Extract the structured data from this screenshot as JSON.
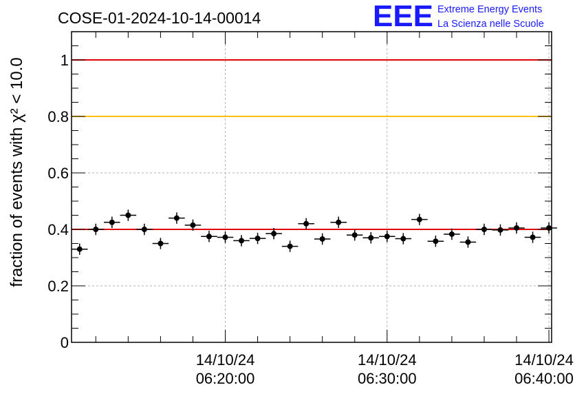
{
  "title": "COSE-01-2024-10-14-00014",
  "logo": {
    "letters": "EEE",
    "line1": "Extreme Energy Events",
    "line2": "La Scienza nelle Scuole",
    "color": "#1a1aff"
  },
  "chart_data": {
    "type": "scatter",
    "title": "COSE-01-2024-10-14-00014",
    "xlabel": "",
    "ylabel": "fraction of events with χ² < 10.0",
    "ylim": [
      0,
      1.1
    ],
    "xlim": [
      "14/10/24 06:10:30",
      "14/10/24 06:40:10"
    ],
    "grid": true,
    "y_ticks": [
      "0",
      "0.2",
      "0.4",
      "0.6",
      "0.8",
      "1"
    ],
    "x_ticks": [
      {
        "date": "14/10/24",
        "time": "06:20:00"
      },
      {
        "date": "14/10/24",
        "time": "06:30:00"
      },
      {
        "date": "14/10/24",
        "time": "06:40:00"
      }
    ],
    "reference_lines": [
      {
        "y": 1.0,
        "color": "#e00000"
      },
      {
        "y": 0.8,
        "color": "#ffbf00"
      },
      {
        "y": 0.4,
        "color": "#e00000"
      }
    ],
    "x_error_min": 0.5,
    "y_error": 0.02,
    "points": [
      {
        "t": "06:11:00",
        "y": 0.33
      },
      {
        "t": "06:12:00",
        "y": 0.4
      },
      {
        "t": "06:13:00",
        "y": 0.425
      },
      {
        "t": "06:14:00",
        "y": 0.45
      },
      {
        "t": "06:15:00",
        "y": 0.4
      },
      {
        "t": "06:16:00",
        "y": 0.35
      },
      {
        "t": "06:17:00",
        "y": 0.44
      },
      {
        "t": "06:18:00",
        "y": 0.415
      },
      {
        "t": "06:19:00",
        "y": 0.375
      },
      {
        "t": "06:20:00",
        "y": 0.372
      },
      {
        "t": "06:21:00",
        "y": 0.36
      },
      {
        "t": "06:22:00",
        "y": 0.368
      },
      {
        "t": "06:23:00",
        "y": 0.385
      },
      {
        "t": "06:24:00",
        "y": 0.34
      },
      {
        "t": "06:25:00",
        "y": 0.42
      },
      {
        "t": "06:26:00",
        "y": 0.366
      },
      {
        "t": "06:27:00",
        "y": 0.425
      },
      {
        "t": "06:28:00",
        "y": 0.38
      },
      {
        "t": "06:29:00",
        "y": 0.37
      },
      {
        "t": "06:30:00",
        "y": 0.375
      },
      {
        "t": "06:31:00",
        "y": 0.367
      },
      {
        "t": "06:32:00",
        "y": 0.435
      },
      {
        "t": "06:33:00",
        "y": 0.358
      },
      {
        "t": "06:34:00",
        "y": 0.383
      },
      {
        "t": "06:35:00",
        "y": 0.355
      },
      {
        "t": "06:36:00",
        "y": 0.4
      },
      {
        "t": "06:37:00",
        "y": 0.398
      },
      {
        "t": "06:38:00",
        "y": 0.405
      },
      {
        "t": "06:39:00",
        "y": 0.372
      },
      {
        "t": "06:40:00",
        "y": 0.405
      }
    ]
  }
}
